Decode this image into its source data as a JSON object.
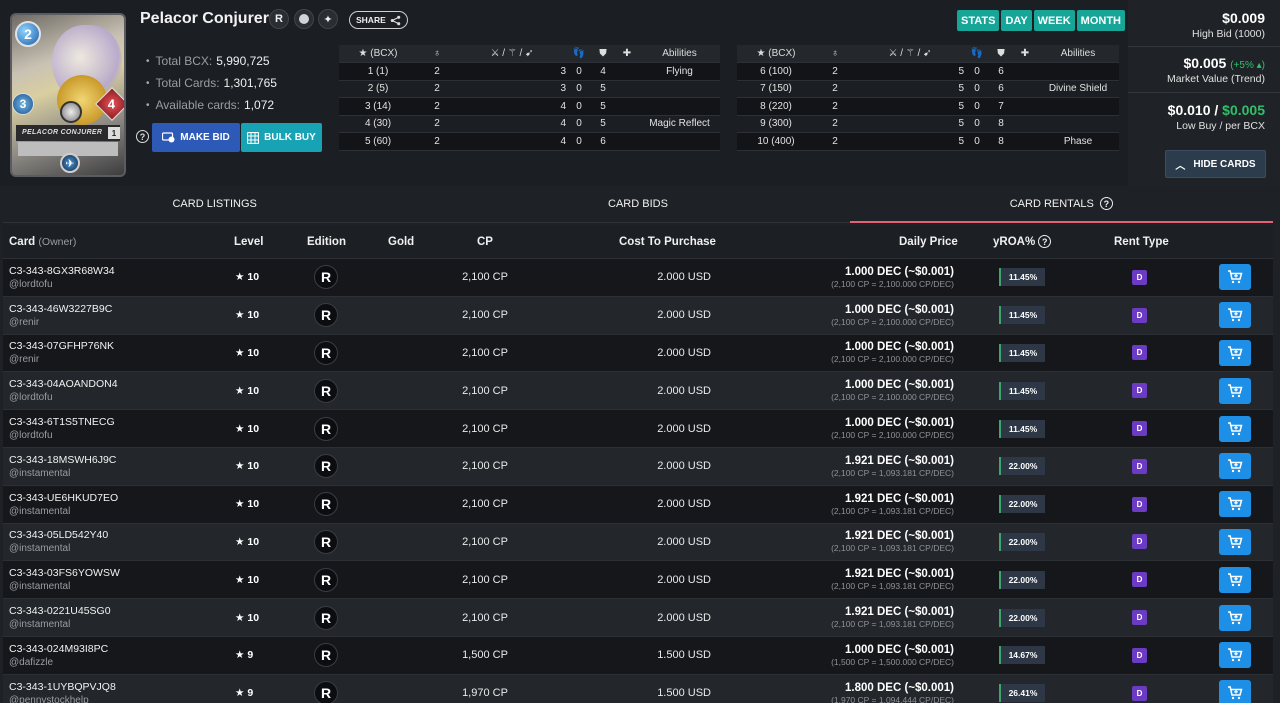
{
  "card": {
    "title": "Pelacor Conjurer",
    "mana": "2",
    "speed": "3",
    "health": "4",
    "level": "1",
    "art_name": "PELACOR CONJURER",
    "share_label": "SHARE"
  },
  "stats": {
    "total_bcx_label": "Total BCX:",
    "total_bcx": "5,990,725",
    "total_cards_label": "Total Cards:",
    "total_cards": "1,301,765",
    "available_label": "Available cards:",
    "available": "1,072"
  },
  "actions": {
    "make_bid": "MAKE BID",
    "bulk_buy": "BULK BUY"
  },
  "level_table_left": {
    "header_bcx": "(BCX)",
    "header_abilities": "Abilities",
    "rows": [
      {
        "bcx": "1 (1)",
        "a": "2",
        "s": "3",
        "m": "0",
        "h": "4",
        "ab": "Flying"
      },
      {
        "bcx": "2 (5)",
        "a": "2",
        "s": "3",
        "m": "0",
        "h": "5",
        "ab": ""
      },
      {
        "bcx": "3 (14)",
        "a": "2",
        "s": "4",
        "m": "0",
        "h": "5",
        "ab": ""
      },
      {
        "bcx": "4 (30)",
        "a": "2",
        "s": "4",
        "m": "0",
        "h": "5",
        "ab": "Magic Reflect"
      },
      {
        "bcx": "5 (60)",
        "a": "2",
        "s": "4",
        "m": "0",
        "h": "6",
        "ab": ""
      }
    ]
  },
  "level_table_right": {
    "header_bcx": "(BCX)",
    "header_abilities": "Abilities",
    "rows": [
      {
        "bcx": "6 (100)",
        "a": "2",
        "s": "5",
        "m": "0",
        "h": "6",
        "ab": ""
      },
      {
        "bcx": "7 (150)",
        "a": "2",
        "s": "5",
        "m": "0",
        "h": "6",
        "ab": "Divine Shield"
      },
      {
        "bcx": "8 (220)",
        "a": "2",
        "s": "5",
        "m": "0",
        "h": "7",
        "ab": ""
      },
      {
        "bcx": "9 (300)",
        "a": "2",
        "s": "5",
        "m": "0",
        "h": "8",
        "ab": ""
      },
      {
        "bcx": "10 (400)",
        "a": "2",
        "s": "5",
        "m": "0",
        "h": "8",
        "ab": "Phase"
      }
    ]
  },
  "periods": [
    "STATS",
    "DAY",
    "WEEK",
    "MONTH"
  ],
  "prices": {
    "high_bid": "$0.009",
    "high_bid_label": "High Bid (1000)",
    "market_value": "$0.005",
    "market_trend": "(+5%",
    "market_label": "Market Value (Trend)",
    "low_buy": "$0.010 /",
    "per_bcx": "$0.005",
    "low_buy_label": "Low Buy / per BCX",
    "hide_cards": "HIDE CARDS"
  },
  "tabs": [
    "CARD LISTINGS",
    "CARD BIDS",
    "CARD RENTALS"
  ],
  "columns": {
    "card": "Card",
    "owner": "(Owner)",
    "level": "Level",
    "edition": "Edition",
    "gold": "Gold",
    "cp": "CP",
    "cost": "Cost To Purchase",
    "daily": "Daily Price",
    "roa": "yROA%",
    "rent_type": "Rent Type"
  },
  "listings": [
    {
      "id": "C3-343-8GX3R68W34",
      "owner": "@lordtofu",
      "level": "10",
      "cp": "2,100 CP",
      "usd": "2.000 USD",
      "dec": "1.000 DEC (~$0.001)",
      "sub": "(2,100 CP = 2,100.000 CP/DEC)",
      "roa": "11.45%",
      "rent": "D"
    },
    {
      "id": "C3-343-46W3227B9C",
      "owner": "@renir",
      "level": "10",
      "cp": "2,100 CP",
      "usd": "2.000 USD",
      "dec": "1.000 DEC (~$0.001)",
      "sub": "(2,100 CP = 2,100.000 CP/DEC)",
      "roa": "11.45%",
      "rent": "D"
    },
    {
      "id": "C3-343-07GFHP76NK",
      "owner": "@renir",
      "level": "10",
      "cp": "2,100 CP",
      "usd": "2.000 USD",
      "dec": "1.000 DEC (~$0.001)",
      "sub": "(2,100 CP = 2,100.000 CP/DEC)",
      "roa": "11.45%",
      "rent": "D"
    },
    {
      "id": "C3-343-04AOANDON4",
      "owner": "@lordtofu",
      "level": "10",
      "cp": "2,100 CP",
      "usd": "2.000 USD",
      "dec": "1.000 DEC (~$0.001)",
      "sub": "(2,100 CP = 2,100.000 CP/DEC)",
      "roa": "11.45%",
      "rent": "D"
    },
    {
      "id": "C3-343-6T1S5TNECG",
      "owner": "@lordtofu",
      "level": "10",
      "cp": "2,100 CP",
      "usd": "2.000 USD",
      "dec": "1.000 DEC (~$0.001)",
      "sub": "(2,100 CP = 2,100.000 CP/DEC)",
      "roa": "11.45%",
      "rent": "D"
    },
    {
      "id": "C3-343-18MSWH6J9C",
      "owner": "@instamental",
      "level": "10",
      "cp": "2,100 CP",
      "usd": "2.000 USD",
      "dec": "1.921 DEC (~$0.001)",
      "sub": "(2,100 CP = 1,093.181 CP/DEC)",
      "roa": "22.00%",
      "rent": "D"
    },
    {
      "id": "C3-343-UE6HKUD7EO",
      "owner": "@instamental",
      "level": "10",
      "cp": "2,100 CP",
      "usd": "2.000 USD",
      "dec": "1.921 DEC (~$0.001)",
      "sub": "(2,100 CP = 1,093.181 CP/DEC)",
      "roa": "22.00%",
      "rent": "D"
    },
    {
      "id": "C3-343-05LD542Y40",
      "owner": "@instamental",
      "level": "10",
      "cp": "2,100 CP",
      "usd": "2.000 USD",
      "dec": "1.921 DEC (~$0.001)",
      "sub": "(2,100 CP = 1,093.181 CP/DEC)",
      "roa": "22.00%",
      "rent": "D"
    },
    {
      "id": "C3-343-03FS6YOWSW",
      "owner": "@instamental",
      "level": "10",
      "cp": "2,100 CP",
      "usd": "2.000 USD",
      "dec": "1.921 DEC (~$0.001)",
      "sub": "(2,100 CP = 1,093.181 CP/DEC)",
      "roa": "22.00%",
      "rent": "D"
    },
    {
      "id": "C3-343-0221U45SG0",
      "owner": "@instamental",
      "level": "10",
      "cp": "2,100 CP",
      "usd": "2.000 USD",
      "dec": "1.921 DEC (~$0.001)",
      "sub": "(2,100 CP = 1,093.181 CP/DEC)",
      "roa": "22.00%",
      "rent": "D"
    },
    {
      "id": "C3-343-024M93I8PC",
      "owner": "@dafizzle",
      "level": "9",
      "cp": "1,500 CP",
      "usd": "1.500 USD",
      "dec": "1.000 DEC (~$0.001)",
      "sub": "(1,500 CP = 1,500.000 CP/DEC)",
      "roa": "14.67%",
      "rent": "D"
    },
    {
      "id": "C3-343-1UYBQPVJQ8",
      "owner": "@pennystockhelp",
      "level": "9",
      "cp": "1,970 CP",
      "usd": "1.500 USD",
      "dec": "1.800 DEC (~$0.001)",
      "sub": "(1,970 CP = 1,094.444 CP/DEC)",
      "roa": "26.41%",
      "rent": "D"
    }
  ]
}
